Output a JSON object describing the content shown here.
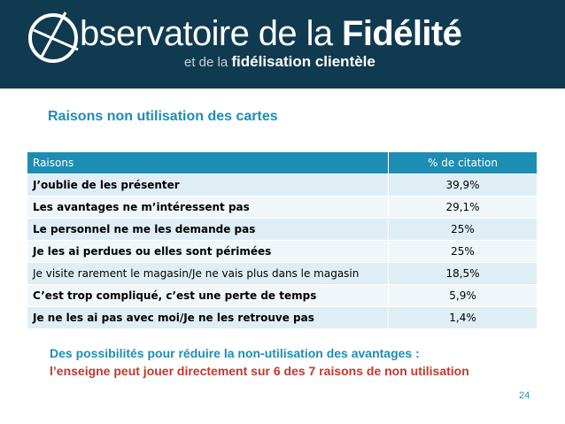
{
  "brand": {
    "title_rest": "bservatoire de la ",
    "title_bold": "Fidélité",
    "sub_light": "et de la ",
    "sub_bold": "fidélisation clientèle"
  },
  "section_title": "Raisons non utilisation des cartes",
  "table": {
    "headers": [
      "Raisons",
      "% de citation"
    ],
    "rows": [
      {
        "reason": "J’oublie de les présenter",
        "pct": "39,9%"
      },
      {
        "reason": "Les avantages ne m’intéressent pas",
        "pct": "29,1%"
      },
      {
        "reason": "Le personnel ne me les demande pas",
        "pct": "25%"
      },
      {
        "reason": "Je les ai perdues ou elles sont périmées",
        "pct": "25%"
      },
      {
        "reason": "Je visite rarement le magasin/Je ne vais plus dans le magasin",
        "pct": "18,5%"
      },
      {
        "reason": "C’est trop compliqué, c’est une perte de temps",
        "pct": "5,9%"
      },
      {
        "reason": "Je ne les ai pas avec moi/Je ne les retrouve pas",
        "pct": "1,4%"
      }
    ]
  },
  "note_line1": "Des possibilités pour réduire la non-utilisation des avantages :",
  "note_line2": "l’enseigne peut jouer directement sur 6 des 7 raisons de non utilisation",
  "page_number": "24",
  "colors": {
    "banner": "#0f3a4f",
    "accent": "#1d8db3",
    "highlight": "#c0392b"
  }
}
